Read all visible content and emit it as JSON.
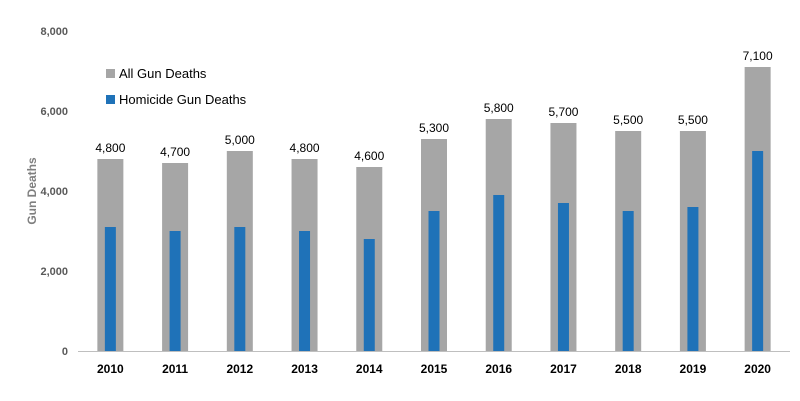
{
  "chart_data": {
    "type": "bar",
    "title": "",
    "xlabel": "",
    "ylabel": "Gun Deaths",
    "ylim": [
      0,
      8000
    ],
    "yticks": [
      0,
      2000,
      4000,
      6000,
      8000
    ],
    "ytick_labels": [
      "0",
      "2,000",
      "4,000",
      "6,000",
      "8,000"
    ],
    "grid": false,
    "legend_placement": "top-left",
    "categories": [
      "2010",
      "2011",
      "2012",
      "2013",
      "2014",
      "2015",
      "2016",
      "2017",
      "2018",
      "2019",
      "2020"
    ],
    "series": [
      {
        "name": "All Gun Deaths",
        "color": "#a6a6a6",
        "values": [
          4800,
          4700,
          5000,
          4800,
          4600,
          5300,
          5800,
          5700,
          5500,
          5500,
          7100
        ],
        "data_labels": [
          "4,800",
          "4,700",
          "5,000",
          "4,800",
          "4,600",
          "5,300",
          "5,800",
          "5,700",
          "5,500",
          "5,500",
          "7,100"
        ]
      },
      {
        "name": "Homicide Gun Deaths",
        "color": "#1f72b8",
        "values": [
          3100,
          3000,
          3100,
          3000,
          2800,
          3500,
          3900,
          3700,
          3500,
          3600,
          5000
        ]
      }
    ]
  }
}
